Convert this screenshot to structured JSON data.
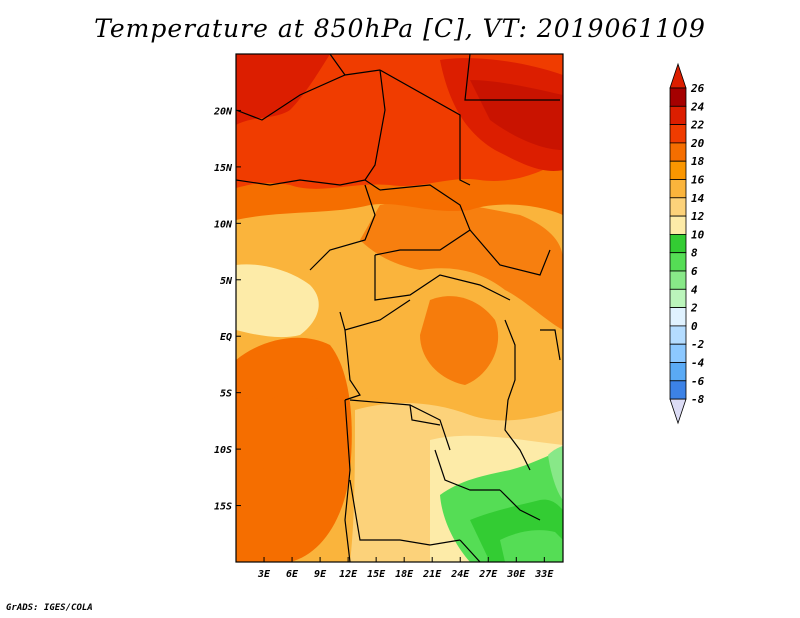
{
  "title": "Temperature at 850hPa [C], VT: 2019061109",
  "credit": "GrADS: IGES/COLA",
  "map": {
    "lon_range": [
      0,
      35
    ],
    "lat_range": [
      -20,
      25
    ],
    "lon_ticks": [
      "3E",
      "6E",
      "9E",
      "12E",
      "15E",
      "18E",
      "21E",
      "24E",
      "27E",
      "30E",
      "33E"
    ],
    "lat_ticks": [
      "20N",
      "15N",
      "10N",
      "5N",
      "EQ",
      "5S",
      "10S",
      "15S"
    ]
  },
  "colorbar": {
    "labels": [
      "26",
      "24",
      "22",
      "20",
      "18",
      "16",
      "14",
      "12",
      "10",
      "8",
      "6",
      "4",
      "2",
      "0",
      "-2",
      "-4",
      "-6",
      "-8"
    ],
    "colors": [
      "#a50000",
      "#dc1e00",
      "#f03c00",
      "#f56e00",
      "#fa9600",
      "#fab43c",
      "#fcd27a",
      "#fdeba8",
      "#33cc33",
      "#55dd55",
      "#88e888",
      "#bbf5bb",
      "#e0f2ff",
      "#b4dcff",
      "#8cc8ff",
      "#5aaaf5",
      "#3c82e6",
      "#1e5ad2",
      "#0a32b4",
      "#000a78"
    ],
    "top_tip_color": "#dc1e00",
    "bottom_tip_color": "#dcdcf5"
  }
}
